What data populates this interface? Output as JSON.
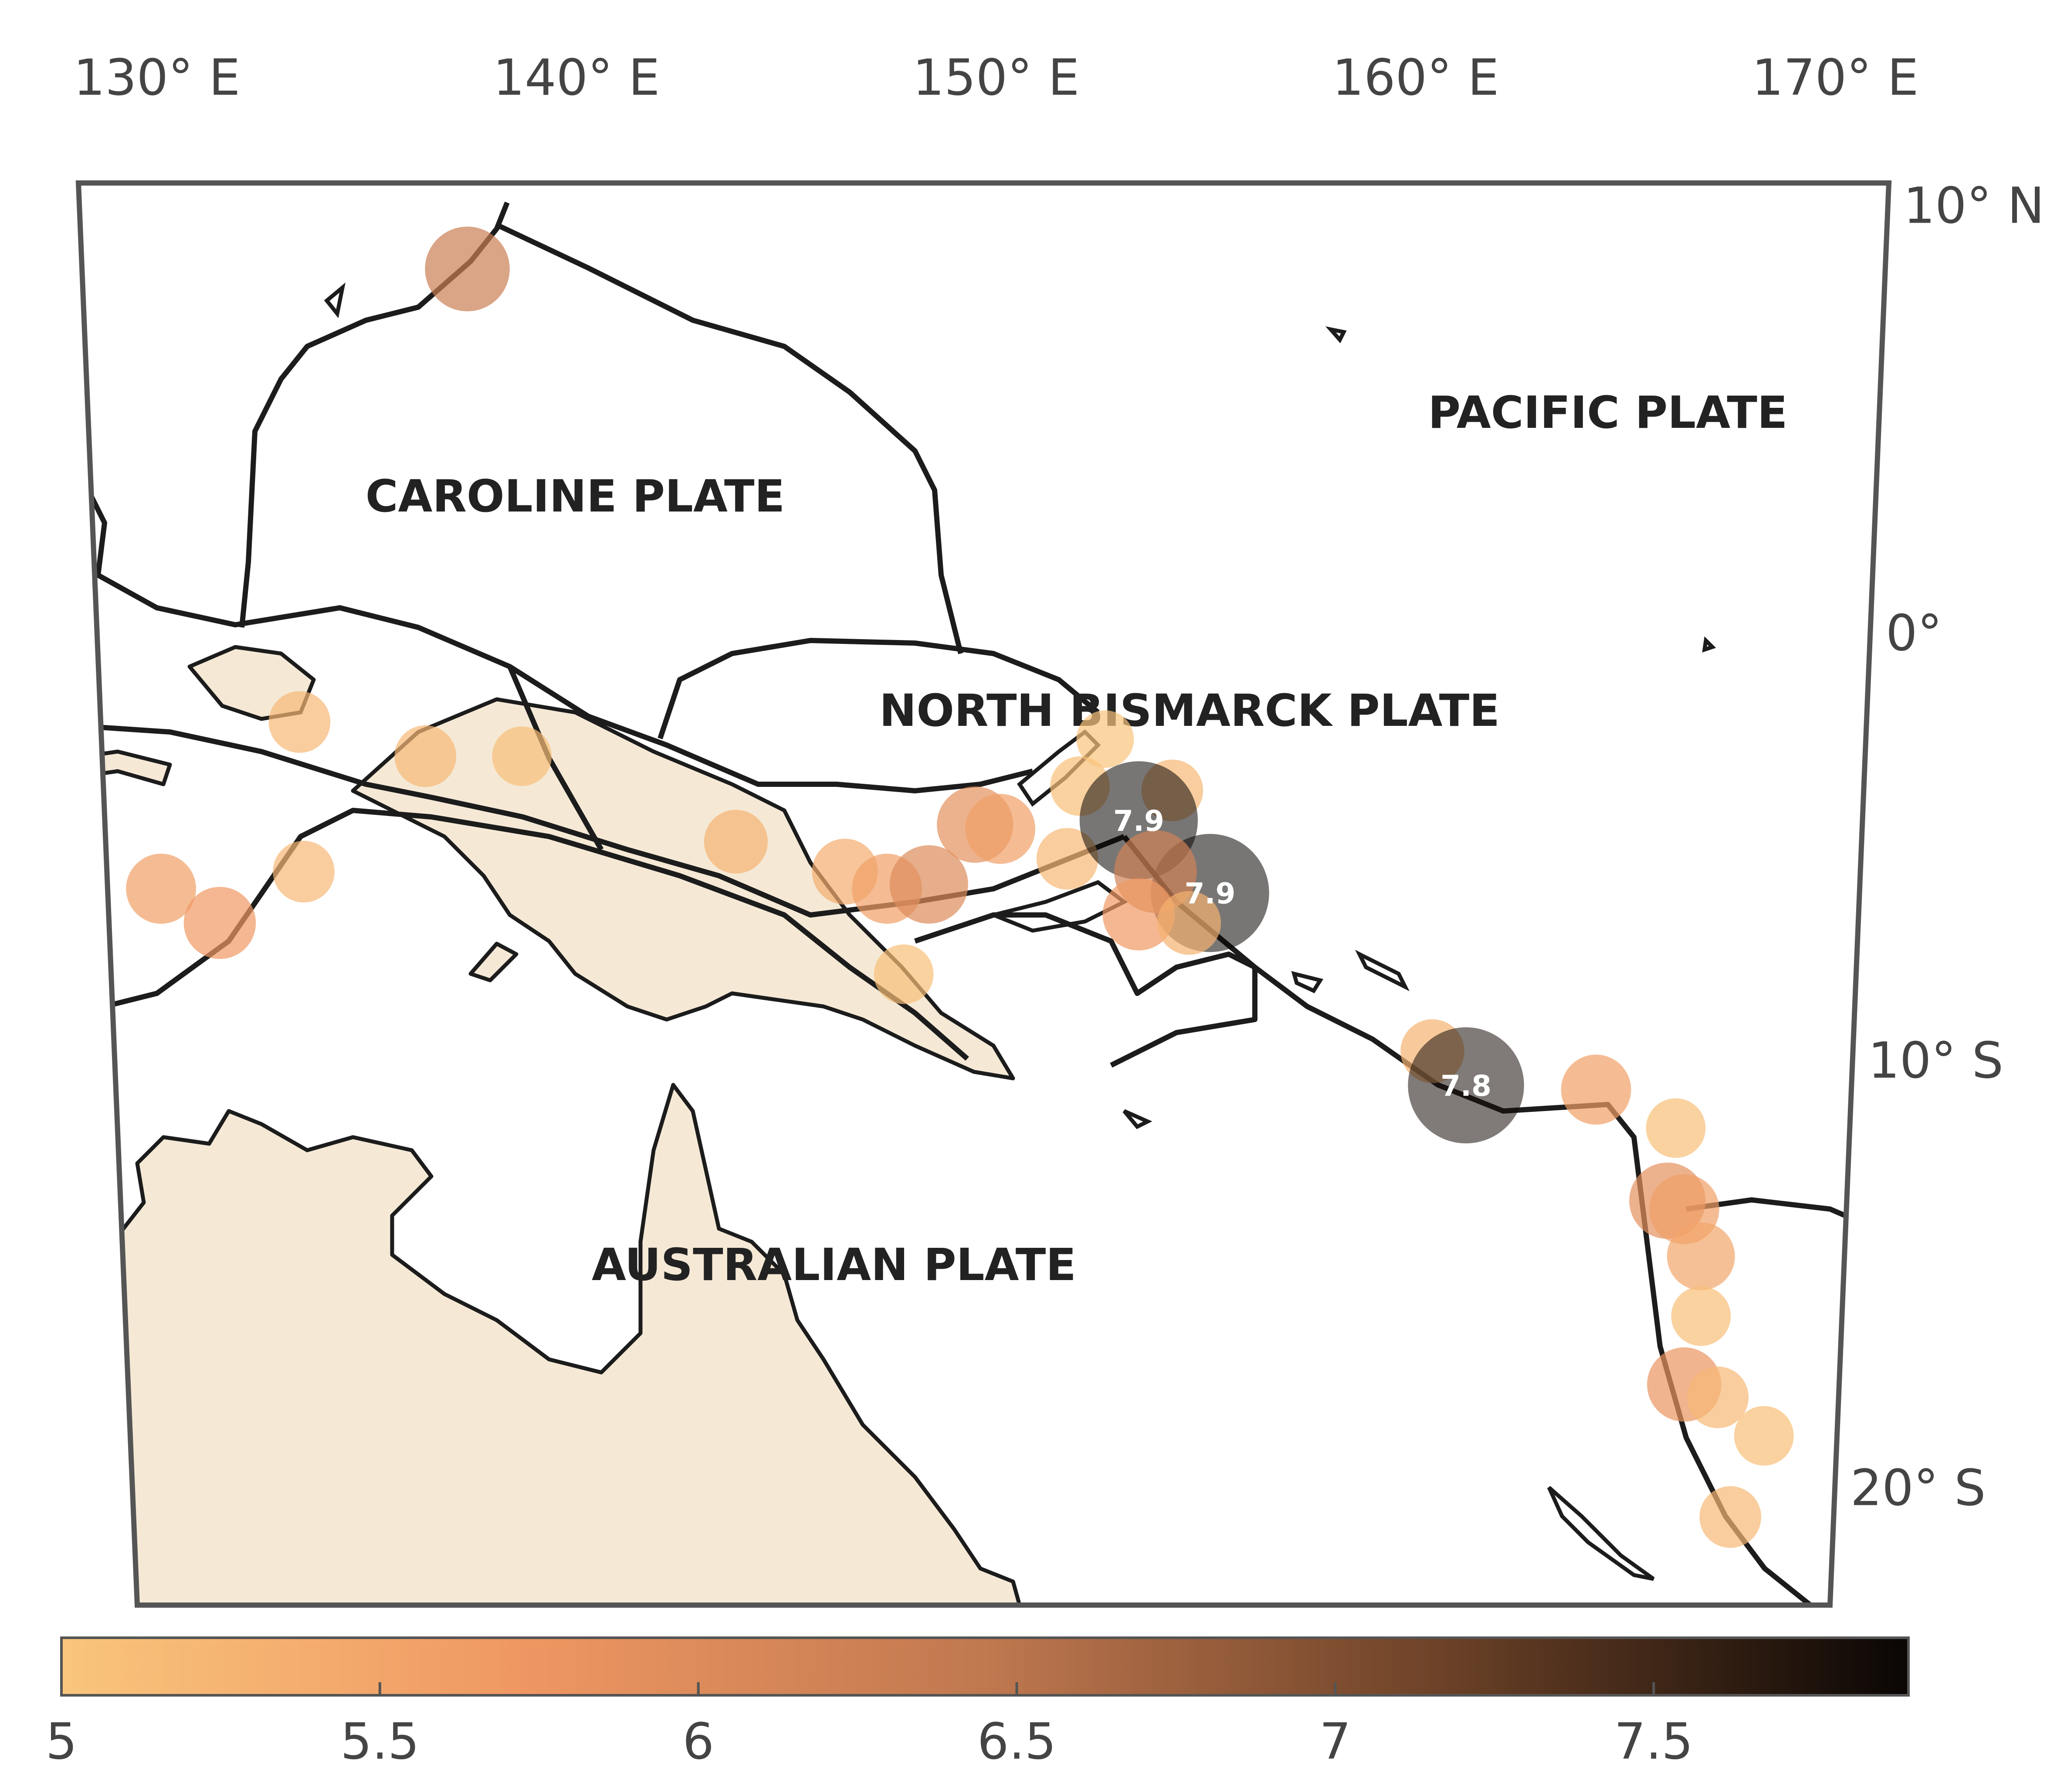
{
  "map": {
    "lon_ticks": [
      {
        "value": 130,
        "label": "130° E"
      },
      {
        "value": 140,
        "label": "140° E"
      },
      {
        "value": 150,
        "label": "150° E"
      },
      {
        "value": 160,
        "label": "160° E"
      },
      {
        "value": 170,
        "label": "170° E"
      }
    ],
    "lat_ticks": [
      {
        "value": 10,
        "label": "10° N"
      },
      {
        "value": 0,
        "label": "0°"
      },
      {
        "value": -10,
        "label": "10° S"
      },
      {
        "value": -20,
        "label": "20° S"
      }
    ],
    "plates": [
      "CAROLINE PLATE",
      "PACIFIC PLATE",
      "NORTH BISMARCK PLATE",
      "AUSTRALIAN PLATE"
    ],
    "colorbar": {
      "lim": [
        5,
        7.9
      ],
      "ticks": [
        5,
        5.5,
        6,
        6.5,
        7,
        7.5
      ],
      "colors": [
        "#f9c57c",
        "#ef9762",
        "#c0784f",
        "#6b4127",
        "#0a0604"
      ]
    },
    "events": [
      {
        "lon": 137.4,
        "lat": 8.6,
        "mag": 6.3
      },
      {
        "lon": 133.4,
        "lat": -2.0,
        "mag": 5.2
      },
      {
        "lon": 136.4,
        "lat": -2.8,
        "mag": 5.2
      },
      {
        "lon": 138.7,
        "lat": -2.8,
        "mag": 5.1
      },
      {
        "lon": 143.8,
        "lat": -4.8,
        "mag": 5.3
      },
      {
        "lon": 133.5,
        "lat": -5.5,
        "mag": 5.2
      },
      {
        "lon": 130.1,
        "lat": -5.9,
        "mag": 5.6
      },
      {
        "lon": 131.5,
        "lat": -6.7,
        "mag": 5.7
      },
      {
        "lon": 146.4,
        "lat": -5.5,
        "mag": 5.4
      },
      {
        "lon": 147.4,
        "lat": -5.9,
        "mag": 5.6
      },
      {
        "lon": 148.4,
        "lat": -5.8,
        "mag": 6.0
      },
      {
        "lon": 149.5,
        "lat": -4.4,
        "mag": 5.9
      },
      {
        "lon": 150.1,
        "lat": -4.5,
        "mag": 5.6
      },
      {
        "lon": 147.8,
        "lat": -7.9,
        "mag": 5.1
      },
      {
        "lon": 151.7,
        "lat": -5.2,
        "mag": 5.2
      },
      {
        "lon": 152.0,
        "lat": -3.5,
        "mag": 5.1
      },
      {
        "lon": 152.6,
        "lat": -2.4,
        "mag": 5.0
      },
      {
        "lon": 154.2,
        "lat": -3.6,
        "mag": 5.2
      },
      {
        "lon": 153.4,
        "lat": -4.3,
        "mag": 7.9,
        "label": "7.9"
      },
      {
        "lon": 155.1,
        "lat": -6.0,
        "mag": 7.9,
        "label": "7.9"
      },
      {
        "lon": 153.8,
        "lat": -5.5,
        "mag": 6.2
      },
      {
        "lon": 153.4,
        "lat": -6.5,
        "mag": 5.7
      },
      {
        "lon": 154.6,
        "lat": -6.7,
        "mag": 5.3
      },
      {
        "lon": 160.4,
        "lat": -9.7,
        "mag": 5.3
      },
      {
        "lon": 161.2,
        "lat": -10.5,
        "mag": 7.8,
        "label": "7.8"
      },
      {
        "lon": 164.3,
        "lat": -10.6,
        "mag": 5.6
      },
      {
        "lon": 166.2,
        "lat": -11.5,
        "mag": 5.1
      },
      {
        "lon": 166.0,
        "lat": -13.2,
        "mag": 5.9
      },
      {
        "lon": 166.4,
        "lat": -13.4,
        "mag": 5.6
      },
      {
        "lon": 166.8,
        "lat": -14.5,
        "mag": 5.5
      },
      {
        "lon": 166.8,
        "lat": -15.9,
        "mag": 5.1
      },
      {
        "lon": 166.4,
        "lat": -17.5,
        "mag": 5.8
      },
      {
        "lon": 167.2,
        "lat": -17.8,
        "mag": 5.2
      },
      {
        "lon": 168.3,
        "lat": -18.7,
        "mag": 5.1
      },
      {
        "lon": 167.5,
        "lat": -20.6,
        "mag": 5.2
      }
    ]
  }
}
